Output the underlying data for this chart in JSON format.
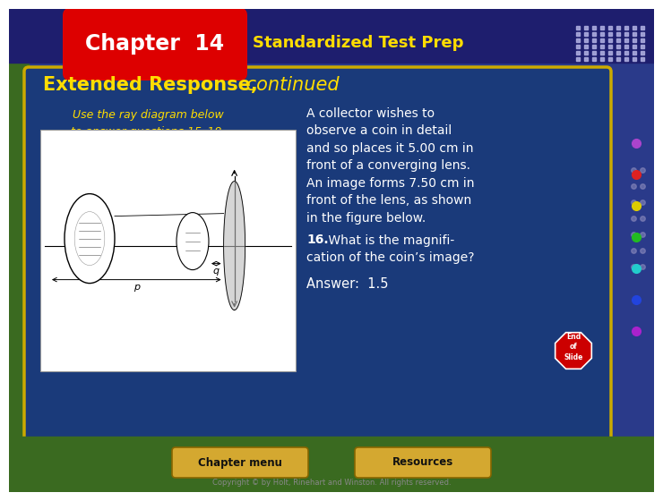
{
  "header_bg": "#1e1e6e",
  "header_text": "Standardized Test Prep",
  "chapter_bg": "#dd0000",
  "chapter_text": "Chapter  14",
  "body_bg": "#1a3a7a",
  "body_border": "#ccaa00",
  "outer_bg": "#2a3a8a",
  "left_bg": "#3a6a20",
  "title_bold": "Extended Response,",
  "title_italic": " continued",
  "title_color": "#ffdd00",
  "instruction_text": "Use the ray diagram below\nto answer questions 15–18.",
  "instruction_color": "#ffdd00",
  "body_text_color": "#ffffff",
  "body_text_line1": "A collector wishes to",
  "body_text_line2": "observe a coin in detail",
  "body_text_line3": "and so places it 5.00 cm in",
  "body_text_line4": "front of a converging lens.",
  "body_text_line5": "An image forms 7.50 cm in",
  "body_text_line6": "front of the lens, as shown",
  "body_text_line7": "in the figure below.",
  "q16_bold": "16.",
  "q16_rest": " What is the magnifi-",
  "q16_line2": "cation of the coin’s image?",
  "answer_text": "Answer:  1.5",
  "footer_bg": "#3a6a20",
  "footer_btn_bg": "#d4a830",
  "footer_btn1": "Chapter menu",
  "footer_btn2": "Resources",
  "copyright": "Copyright © by Holt, Rinehart and Winston. All rights reserved.",
  "end_slide_color": "#cc0000",
  "dot_colors_right": [
    "#aa44cc",
    "#dd2222",
    "#ddcc00",
    "#22bb22",
    "#22cccc",
    "#2244dd",
    "#aa22cc"
  ]
}
